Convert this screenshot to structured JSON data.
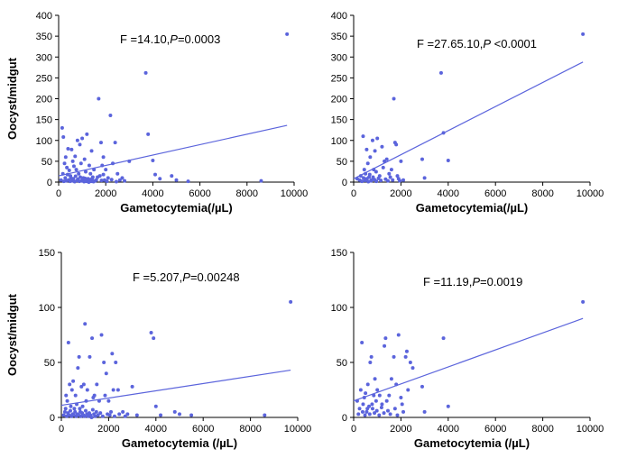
{
  "colors": {
    "points": "#5b64dc",
    "line": "#5b64dc",
    "axis": "#000000"
  },
  "chart_data": [
    {
      "type": "scatter",
      "title": "",
      "xlabel": "Gametocytemia(/µL)",
      "ylabel": "Oocyst/midgut",
      "annotation_prefix": "F =14.10,",
      "annotation_italic": "P",
      "annotation_suffix": "=0.0003",
      "xlim": [
        0,
        10000
      ],
      "ylim": [
        0,
        400
      ],
      "xticks": [
        0,
        2000,
        4000,
        6000,
        8000,
        10000
      ],
      "yticks": [
        0,
        50,
        100,
        150,
        200,
        250,
        300,
        350,
        400
      ],
      "regression": {
        "x": [
          0,
          9700
        ],
        "y": [
          15,
          136
        ]
      },
      "points": [
        [
          150,
          130
        ],
        [
          200,
          108
        ],
        [
          250,
          45
        ],
        [
          300,
          60
        ],
        [
          350,
          35
        ],
        [
          400,
          80
        ],
        [
          450,
          28
        ],
        [
          500,
          15
        ],
        [
          550,
          78
        ],
        [
          600,
          50
        ],
        [
          650,
          38
        ],
        [
          700,
          62
        ],
        [
          750,
          30
        ],
        [
          800,
          100
        ],
        [
          850,
          20
        ],
        [
          900,
          90
        ],
        [
          950,
          45
        ],
        [
          1000,
          105
        ],
        [
          1050,
          10
        ],
        [
          1100,
          55
        ],
        [
          1150,
          25
        ],
        [
          1200,
          115
        ],
        [
          1250,
          8
        ],
        [
          1300,
          40
        ],
        [
          1350,
          20
        ],
        [
          1400,
          75
        ],
        [
          1450,
          12
        ],
        [
          1500,
          30
        ],
        [
          1600,
          5
        ],
        [
          1700,
          200
        ],
        [
          1750,
          15
        ],
        [
          1800,
          95
        ],
        [
          1850,
          40
        ],
        [
          1900,
          60
        ],
        [
          1950,
          5
        ],
        [
          2000,
          30
        ],
        [
          2100,
          10
        ],
        [
          2200,
          160
        ],
        [
          2300,
          45
        ],
        [
          2400,
          95
        ],
        [
          2500,
          20
        ],
        [
          2600,
          5
        ],
        [
          2700,
          10
        ],
        [
          3000,
          50
        ],
        [
          3700,
          262
        ],
        [
          3800,
          115
        ],
        [
          4000,
          52
        ],
        [
          4100,
          18
        ],
        [
          4300,
          8
        ],
        [
          4800,
          15
        ],
        [
          5000,
          5
        ],
        [
          5500,
          2
        ],
        [
          8600,
          3
        ],
        [
          9700,
          355
        ],
        [
          100,
          5
        ],
        [
          180,
          20
        ],
        [
          220,
          2
        ],
        [
          280,
          10
        ],
        [
          320,
          3
        ],
        [
          380,
          18
        ],
        [
          420,
          5
        ],
        [
          480,
          2
        ],
        [
          520,
          10
        ],
        [
          580,
          3
        ],
        [
          620,
          8
        ],
        [
          680,
          1
        ],
        [
          720,
          14
        ],
        [
          780,
          4
        ],
        [
          820,
          7
        ],
        [
          880,
          2
        ],
        [
          920,
          12
        ],
        [
          980,
          3
        ],
        [
          1020,
          6
        ],
        [
          1080,
          1
        ],
        [
          1120,
          9
        ],
        [
          1180,
          2
        ],
        [
          1220,
          4
        ],
        [
          1280,
          0
        ],
        [
          1320,
          6
        ],
        [
          1380,
          2
        ],
        [
          1420,
          8
        ],
        [
          1480,
          1
        ],
        [
          1550,
          3
        ],
        [
          1650,
          12
        ],
        [
          1820,
          4
        ],
        [
          1900,
          18
        ],
        [
          2050,
          2
        ],
        [
          2250,
          6
        ],
        [
          2450,
          1
        ],
        [
          2800,
          3
        ]
      ]
    },
    {
      "type": "scatter",
      "title": "",
      "xlabel": "Gametocytemia(/µL)",
      "ylabel": "",
      "annotation_prefix": "F =27.65.10,",
      "annotation_italic": "P",
      "annotation_suffix": " <0.0001",
      "xlim": [
        0,
        10000
      ],
      "ylim": [
        0,
        400
      ],
      "xticks": [
        0,
        2000,
        4000,
        6000,
        8000,
        10000
      ],
      "yticks": [
        0,
        50,
        100,
        150,
        200,
        250,
        300,
        350,
        400
      ],
      "regression": {
        "x": [
          0,
          9700
        ],
        "y": [
          8,
          288
        ]
      },
      "points": [
        [
          150,
          8
        ],
        [
          250,
          5
        ],
        [
          300,
          15
        ],
        [
          400,
          110
        ],
        [
          450,
          30
        ],
        [
          500,
          20
        ],
        [
          550,
          78
        ],
        [
          600,
          45
        ],
        [
          650,
          12
        ],
        [
          700,
          60
        ],
        [
          750,
          5
        ],
        [
          800,
          100
        ],
        [
          850,
          30
        ],
        [
          900,
          75
        ],
        [
          950,
          25
        ],
        [
          1000,
          105
        ],
        [
          1100,
          15
        ],
        [
          1200,
          85
        ],
        [
          1250,
          35
        ],
        [
          1300,
          50
        ],
        [
          1400,
          55
        ],
        [
          1500,
          20
        ],
        [
          1600,
          30
        ],
        [
          1700,
          200
        ],
        [
          1750,
          95
        ],
        [
          1800,
          90
        ],
        [
          1850,
          15
        ],
        [
          1900,
          8
        ],
        [
          2000,
          50
        ],
        [
          2100,
          5
        ],
        [
          2900,
          55
        ],
        [
          3000,
          10
        ],
        [
          3700,
          262
        ],
        [
          3800,
          118
        ],
        [
          4000,
          52
        ],
        [
          9700,
          355
        ],
        [
          350,
          2
        ],
        [
          420,
          10
        ],
        [
          480,
          4
        ],
        [
          560,
          8
        ],
        [
          620,
          1
        ],
        [
          680,
          18
        ],
        [
          740,
          3
        ],
        [
          820,
          12
        ],
        [
          880,
          6
        ],
        [
          960,
          2
        ],
        [
          1050,
          9
        ],
        [
          1150,
          4
        ],
        [
          1350,
          7
        ],
        [
          1450,
          3
        ],
        [
          1550,
          12
        ],
        [
          1650,
          5
        ],
        [
          1950,
          3
        ]
      ]
    },
    {
      "type": "scatter",
      "title": "",
      "xlabel": "Gametocytemia (/µL)",
      "ylabel": "Oocyst/midgut",
      "annotation_prefix": "F =5.207,",
      "annotation_italic": "P",
      "annotation_suffix": "=0.00248",
      "xlim": [
        0,
        10000
      ],
      "ylim": [
        0,
        150
      ],
      "xticks": [
        0,
        2000,
        4000,
        6000,
        8000,
        10000
      ],
      "yticks": [
        0,
        50,
        100,
        150
      ],
      "regression": {
        "x": [
          0,
          9700
        ],
        "y": [
          11,
          43
        ]
      },
      "points": [
        [
          150,
          5
        ],
        [
          200,
          20
        ],
        [
          250,
          15
        ],
        [
          300,
          68
        ],
        [
          350,
          30
        ],
        [
          400,
          10
        ],
        [
          450,
          25
        ],
        [
          500,
          33
        ],
        [
          550,
          8
        ],
        [
          600,
          20
        ],
        [
          650,
          12
        ],
        [
          700,
          45
        ],
        [
          750,
          55
        ],
        [
          800,
          5
        ],
        [
          850,
          28
        ],
        [
          900,
          10
        ],
        [
          950,
          30
        ],
        [
          1000,
          85
        ],
        [
          1050,
          15
        ],
        [
          1100,
          25
        ],
        [
          1200,
          55
        ],
        [
          1300,
          72
        ],
        [
          1350,
          18
        ],
        [
          1400,
          20
        ],
        [
          1500,
          30
        ],
        [
          1600,
          15
        ],
        [
          1700,
          75
        ],
        [
          1800,
          50
        ],
        [
          1850,
          20
        ],
        [
          1900,
          40
        ],
        [
          2000,
          15
        ],
        [
          2100,
          5
        ],
        [
          2150,
          58
        ],
        [
          2200,
          25
        ],
        [
          2300,
          50
        ],
        [
          2400,
          25
        ],
        [
          2600,
          5
        ],
        [
          2800,
          3
        ],
        [
          3000,
          28
        ],
        [
          3800,
          77
        ],
        [
          3900,
          72
        ],
        [
          4000,
          10
        ],
        [
          4200,
          2
        ],
        [
          4800,
          5
        ],
        [
          5000,
          3
        ],
        [
          5500,
          2
        ],
        [
          8600,
          2
        ],
        [
          9700,
          105
        ],
        [
          100,
          2
        ],
        [
          180,
          8
        ],
        [
          230,
          1
        ],
        [
          280,
          4
        ],
        [
          330,
          2
        ],
        [
          380,
          6
        ],
        [
          430,
          1
        ],
        [
          480,
          3
        ],
        [
          530,
          2
        ],
        [
          580,
          5
        ],
        [
          630,
          1
        ],
        [
          680,
          3
        ],
        [
          730,
          2
        ],
        [
          780,
          8
        ],
        [
          830,
          1
        ],
        [
          880,
          4
        ],
        [
          930,
          2
        ],
        [
          980,
          1
        ],
        [
          1030,
          6
        ],
        [
          1080,
          3
        ],
        [
          1130,
          1
        ],
        [
          1180,
          4
        ],
        [
          1230,
          2
        ],
        [
          1280,
          0
        ],
        [
          1330,
          7
        ],
        [
          1380,
          3
        ],
        [
          1430,
          1
        ],
        [
          1480,
          5
        ],
        [
          1550,
          2
        ],
        [
          1650,
          4
        ],
        [
          1750,
          1
        ],
        [
          1950,
          3
        ],
        [
          2050,
          2
        ],
        [
          2250,
          1
        ],
        [
          2450,
          3
        ],
        [
          2700,
          1
        ],
        [
          3200,
          2
        ]
      ]
    },
    {
      "type": "scatter",
      "title": "",
      "xlabel": "Gametocytemia (/µL)",
      "ylabel": "",
      "annotation_prefix": "F =11.19,",
      "annotation_italic": "P",
      "annotation_suffix": "=0.0019",
      "xlim": [
        0,
        10000
      ],
      "ylim": [
        0,
        150
      ],
      "xticks": [
        0,
        2000,
        4000,
        6000,
        8000,
        10000
      ],
      "yticks": [
        0,
        50,
        100,
        150
      ],
      "regression": {
        "x": [
          0,
          9700
        ],
        "y": [
          15,
          90
        ]
      },
      "points": [
        [
          150,
          15
        ],
        [
          250,
          8
        ],
        [
          300,
          25
        ],
        [
          350,
          68
        ],
        [
          400,
          12
        ],
        [
          450,
          18
        ],
        [
          500,
          22
        ],
        [
          550,
          5
        ],
        [
          600,
          30
        ],
        [
          650,
          10
        ],
        [
          700,
          50
        ],
        [
          750,
          55
        ],
        [
          800,
          8
        ],
        [
          850,
          20
        ],
        [
          900,
          35
        ],
        [
          950,
          15
        ],
        [
          1000,
          25
        ],
        [
          1100,
          20
        ],
        [
          1200,
          12
        ],
        [
          1300,
          65
        ],
        [
          1350,
          72
        ],
        [
          1400,
          15
        ],
        [
          1500,
          20
        ],
        [
          1600,
          35
        ],
        [
          1700,
          55
        ],
        [
          1800,
          30
        ],
        [
          1900,
          75
        ],
        [
          2000,
          18
        ],
        [
          2100,
          5
        ],
        [
          2200,
          55
        ],
        [
          2250,
          60
        ],
        [
          2300,
          25
        ],
        [
          2400,
          50
        ],
        [
          2500,
          45
        ],
        [
          2900,
          28
        ],
        [
          3000,
          5
        ],
        [
          3800,
          72
        ],
        [
          4000,
          10
        ],
        [
          9700,
          105
        ],
        [
          200,
          3
        ],
        [
          380,
          5
        ],
        [
          480,
          2
        ],
        [
          580,
          8
        ],
        [
          680,
          3
        ],
        [
          780,
          12
        ],
        [
          880,
          4
        ],
        [
          980,
          6
        ],
        [
          1080,
          2
        ],
        [
          1180,
          9
        ],
        [
          1280,
          4
        ],
        [
          1450,
          6
        ],
        [
          1550,
          3
        ],
        [
          1750,
          8
        ],
        [
          1850,
          2
        ],
        [
          2050,
          12
        ]
      ]
    }
  ]
}
